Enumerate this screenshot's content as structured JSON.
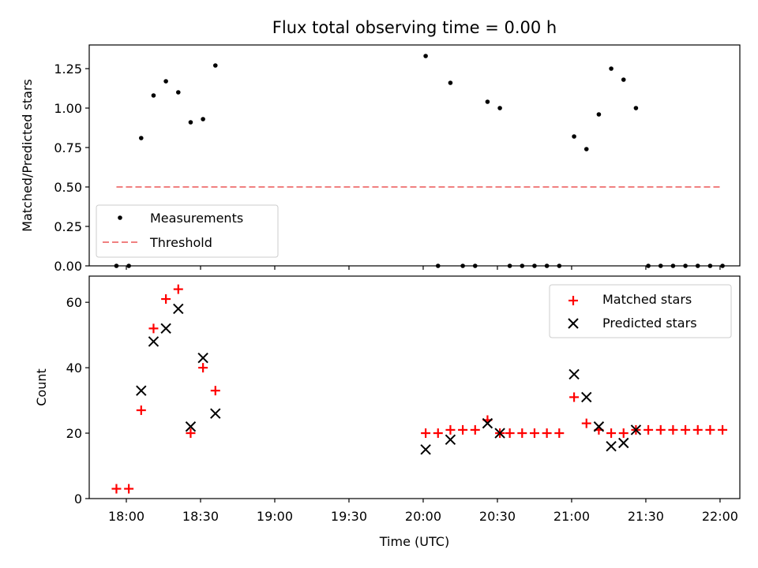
{
  "chart_data": [
    {
      "type": "scatter",
      "title": "Flux total observing time = 0.00 h",
      "ylabel": "Matched/Predicted stars",
      "ylim": [
        0,
        1.4
      ],
      "yticks": [
        "0.00",
        "0.25",
        "0.50",
        "0.75",
        "1.00",
        "1.25"
      ],
      "ytick_values": [
        0,
        0.25,
        0.5,
        0.75,
        1.0,
        1.25
      ],
      "series": [
        {
          "name": "Measurements",
          "color": "#000000",
          "marker": "dot",
          "points": [
            [
              "17:56",
              0
            ],
            [
              "18:01",
              0
            ],
            [
              "18:06",
              0.81
            ],
            [
              "18:11",
              1.08
            ],
            [
              "18:16",
              1.17
            ],
            [
              "18:21",
              1.1
            ],
            [
              "18:26",
              0.91
            ],
            [
              "18:31",
              0.93
            ],
            [
              "18:36",
              1.27
            ],
            [
              "20:01",
              1.33
            ],
            [
              "20:06",
              0
            ],
            [
              "20:11",
              1.16
            ],
            [
              "20:16",
              0
            ],
            [
              "20:21",
              0
            ],
            [
              "20:26",
              1.04
            ],
            [
              "20:31",
              1.0
            ],
            [
              "20:35",
              0
            ],
            [
              "20:40",
              0
            ],
            [
              "20:45",
              0
            ],
            [
              "20:50",
              0
            ],
            [
              "20:55",
              0
            ],
            [
              "21:01",
              0.82
            ],
            [
              "21:06",
              0.74
            ],
            [
              "21:11",
              0.96
            ],
            [
              "21:16",
              1.25
            ],
            [
              "21:21",
              1.18
            ],
            [
              "21:26",
              1.0
            ],
            [
              "21:31",
              0
            ],
            [
              "21:36",
              0
            ],
            [
              "21:41",
              0
            ],
            [
              "21:46",
              0
            ],
            [
              "21:51",
              0
            ],
            [
              "21:56",
              0
            ],
            [
              "22:01",
              0
            ]
          ]
        },
        {
          "name": "Threshold",
          "color": "#f08080",
          "style": "dashed",
          "x": [
            "17:56",
            "22:01"
          ],
          "y": [
            0.5,
            0.5
          ]
        }
      ],
      "legend": "lower-left",
      "grid": false
    },
    {
      "type": "scatter",
      "xlabel": "Time (UTC)",
      "ylabel": "Count",
      "xlim": [
        "17:45",
        "22:08"
      ],
      "ylim": [
        0,
        68
      ],
      "xticks": [
        "18:00",
        "18:30",
        "19:00",
        "19:30",
        "20:00",
        "20:30",
        "21:00",
        "21:30",
        "22:00"
      ],
      "yticks": [
        "0",
        "20",
        "40",
        "60"
      ],
      "ytick_values": [
        0,
        20,
        40,
        60
      ],
      "series": [
        {
          "name": "Matched stars",
          "color": "#ff0000",
          "marker": "plus",
          "points": [
            [
              "17:56",
              3
            ],
            [
              "18:01",
              3
            ],
            [
              "18:06",
              27
            ],
            [
              "18:11",
              52
            ],
            [
              "18:16",
              61
            ],
            [
              "18:21",
              64
            ],
            [
              "18:26",
              20
            ],
            [
              "18:31",
              40
            ],
            [
              "18:36",
              33
            ],
            [
              "20:01",
              20
            ],
            [
              "20:06",
              20
            ],
            [
              "20:11",
              21
            ],
            [
              "20:16",
              21
            ],
            [
              "20:21",
              21
            ],
            [
              "20:26",
              24
            ],
            [
              "20:31",
              20
            ],
            [
              "20:35",
              20
            ],
            [
              "20:40",
              20
            ],
            [
              "20:45",
              20
            ],
            [
              "20:50",
              20
            ],
            [
              "20:55",
              20
            ],
            [
              "21:01",
              31
            ],
            [
              "21:06",
              23
            ],
            [
              "21:11",
              21
            ],
            [
              "21:16",
              20
            ],
            [
              "21:21",
              20
            ],
            [
              "21:26",
              21
            ],
            [
              "21:31",
              21
            ],
            [
              "21:36",
              21
            ],
            [
              "21:41",
              21
            ],
            [
              "21:46",
              21
            ],
            [
              "21:51",
              21
            ],
            [
              "21:56",
              21
            ],
            [
              "22:01",
              21
            ]
          ]
        },
        {
          "name": "Predicted stars",
          "color": "#000000",
          "marker": "x",
          "points": [
            [
              "18:06",
              33
            ],
            [
              "18:11",
              48
            ],
            [
              "18:16",
              52
            ],
            [
              "18:21",
              58
            ],
            [
              "18:26",
              22
            ],
            [
              "18:31",
              43
            ],
            [
              "18:36",
              26
            ],
            [
              "20:01",
              15
            ],
            [
              "20:11",
              18
            ],
            [
              "20:26",
              23
            ],
            [
              "20:31",
              20
            ],
            [
              "21:01",
              38
            ],
            [
              "21:06",
              31
            ],
            [
              "21:11",
              22
            ],
            [
              "21:16",
              16
            ],
            [
              "21:21",
              17
            ],
            [
              "21:26",
              21
            ]
          ]
        }
      ],
      "legend": "top-right",
      "grid": false
    }
  ]
}
